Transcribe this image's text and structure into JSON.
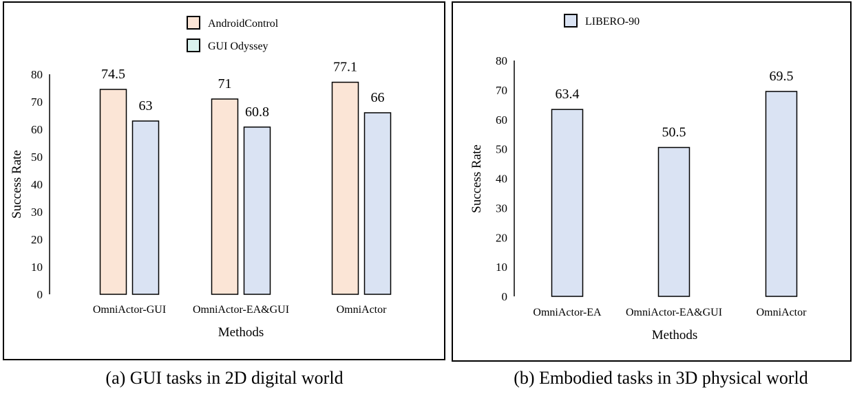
{
  "chart_data": [
    {
      "type": "bar",
      "caption": "(a) GUI tasks in 2D digital world",
      "categories": [
        "OmniActor-GUI",
        "OmniActor-EA&GUI",
        "OmniActor"
      ],
      "series": [
        {
          "name": "AndroidControl",
          "values": [
            74.5,
            71,
            77.1
          ],
          "color": "#fbe5d6",
          "legend_color": "#fbe5d6"
        },
        {
          "name": "GUI Odyssey",
          "values": [
            63,
            60.8,
            66
          ],
          "color": "#dae3f3",
          "legend_color": "#daf2ee"
        }
      ],
      "data_labels": [
        [
          "74.5",
          "71",
          "77.1"
        ],
        [
          "63",
          "60.8",
          "66"
        ]
      ],
      "xlabel": "Methods",
      "ylabel": "Success Rate",
      "ylim": [
        0,
        80
      ],
      "yticks": [
        "0",
        "10",
        "20",
        "30",
        "40",
        "50",
        "60",
        "70",
        "80"
      ],
      "grid": false,
      "legend": "top-center"
    },
    {
      "type": "bar",
      "caption": "(b) Embodied tasks in 3D physical world",
      "categories": [
        "OmniActor-EA",
        "OmniActor-EA&GUI",
        "OmniActor"
      ],
      "series": [
        {
          "name": "LIBERO-90",
          "values": [
            63.4,
            50.5,
            69.5
          ],
          "color": "#dae3f3",
          "legend_color": "#dae3f3"
        }
      ],
      "data_labels": [
        [
          "63.4",
          "50.5",
          "69.5"
        ]
      ],
      "xlabel": "Methods",
      "ylabel": "Success Rate",
      "ylim": [
        0,
        80
      ],
      "yticks": [
        "0",
        "10",
        "20",
        "30",
        "40",
        "50",
        "60",
        "70",
        "80"
      ],
      "grid": false,
      "legend": "top-center"
    }
  ]
}
